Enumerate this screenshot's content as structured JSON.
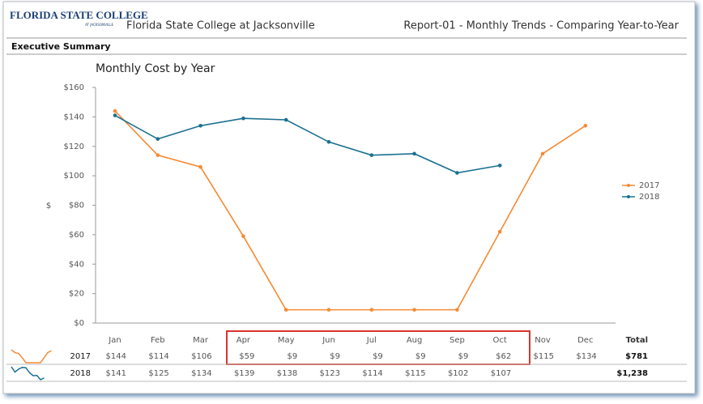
{
  "header": {
    "logo_main": "FLORIDA STATE COLLEGE",
    "logo_sub": "AT JACKSONVILLE",
    "title": "Florida State College at Jacksonville",
    "report": "Report-01 - Monthly Trends - Comparing Year-to-Year"
  },
  "section": "Executive Summary",
  "chart_data": {
    "type": "line",
    "title": "Monthly Cost by Year",
    "y_label": "$",
    "categories": [
      "Jan",
      "Feb",
      "Mar",
      "Apr",
      "May",
      "Jun",
      "Jul",
      "Aug",
      "Sep",
      "Oct",
      "Nov",
      "Dec"
    ],
    "series": [
      {
        "name": "2017",
        "color": "#f58a33",
        "values": [
          144,
          114,
          106,
          59,
          9,
          9,
          9,
          9,
          9,
          62,
          115,
          134
        ],
        "value_labels": [
          "$144",
          "$114",
          "$106",
          "$59",
          "$9",
          "$9",
          "$9",
          "$9",
          "$9",
          "$62",
          "$115",
          "$134"
        ],
        "total": "$781"
      },
      {
        "name": "2018",
        "color": "#1a7090",
        "values": [
          141,
          125,
          134,
          139,
          138,
          123,
          114,
          115,
          102,
          107,
          null,
          null
        ],
        "value_labels": [
          "$141",
          "$125",
          "$134",
          "$139",
          "$138",
          "$123",
          "$114",
          "$115",
          "$102",
          "$107",
          null,
          null
        ],
        "total": "$1,238"
      }
    ],
    "total_header": "Total",
    "ylim": [
      0,
      160
    ],
    "yticks": [
      {
        "value": 0,
        "label": "$0"
      },
      {
        "value": 20,
        "label": "$20"
      },
      {
        "value": 40,
        "label": "$40"
      },
      {
        "value": 60,
        "label": "$60"
      },
      {
        "value": 80,
        "label": "$80"
      },
      {
        "value": 100,
        "label": "$100"
      },
      {
        "value": 120,
        "label": "$120"
      },
      {
        "value": 140,
        "label": "$140"
      },
      {
        "value": 160,
        "label": "$160"
      }
    ],
    "legend": "right"
  }
}
